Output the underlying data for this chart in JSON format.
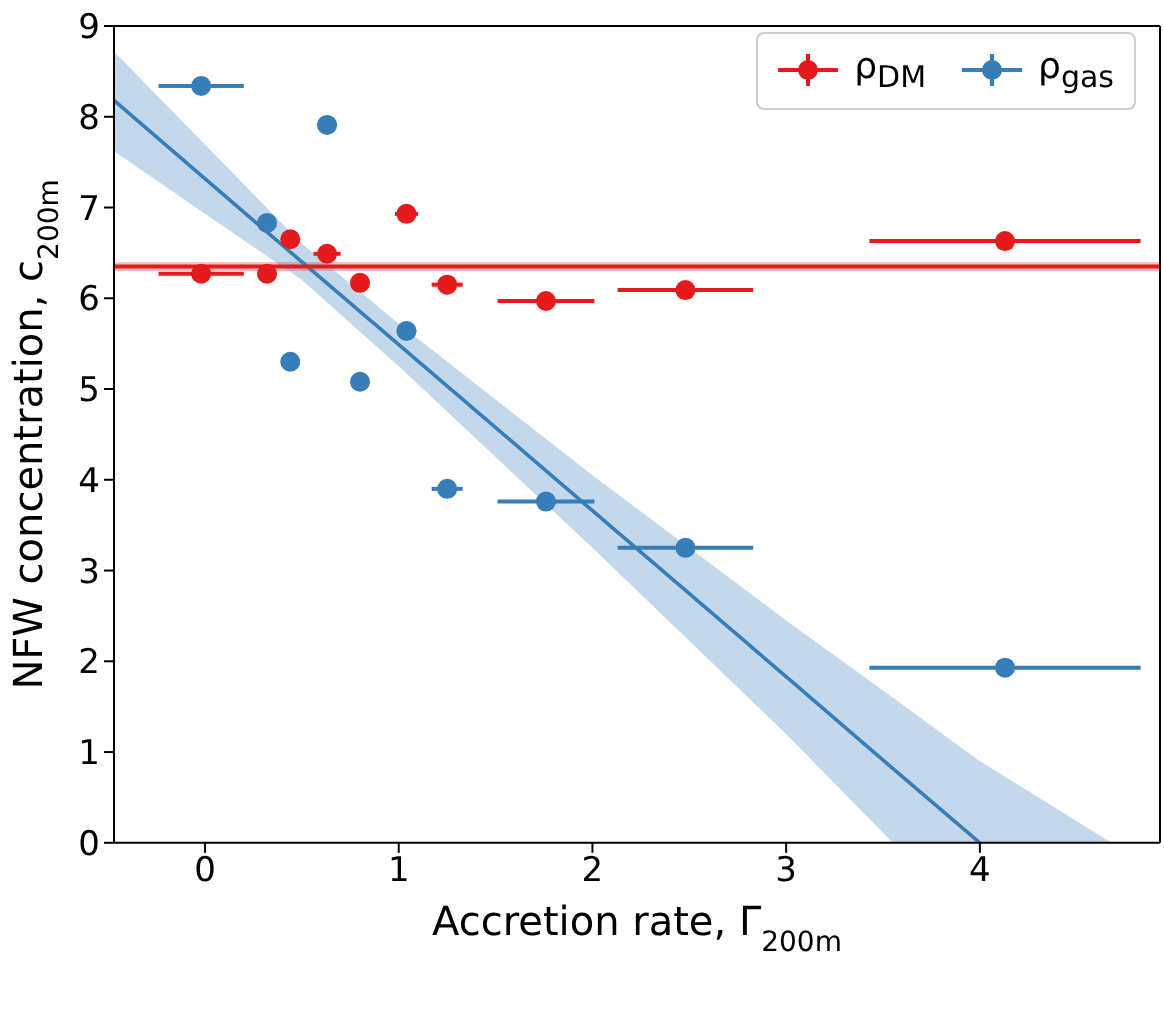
{
  "chart_data": {
    "type": "scatter",
    "xlabel": "Accretion rate, Γ$_{200m}$",
    "ylabel": "NFW concentration, c$_{200m}$",
    "xlim": [
      -0.47,
      4.93
    ],
    "xticks": [
      0,
      1,
      2,
      3,
      4
    ],
    "ylim": [
      0,
      9
    ],
    "yticks": [
      0,
      1,
      2,
      3,
      4,
      5,
      6,
      7,
      8,
      9
    ],
    "legend": "top right",
    "marker": "circle",
    "series": [
      {
        "name": "ρ$_{DM}$",
        "color": "#e41a1c",
        "x": [
          -0.02,
          0.32,
          0.44,
          0.63,
          0.8,
          1.04,
          1.25,
          1.76,
          2.48,
          4.13
        ],
        "values": [
          6.27,
          6.27,
          6.65,
          6.49,
          6.17,
          6.93,
          6.15,
          5.97,
          6.09,
          6.63
        ],
        "xerrors": [
          0.22,
          null,
          null,
          0.07,
          null,
          0.06,
          0.08,
          0.25,
          0.35,
          0.7
        ]
      },
      {
        "name": "ρ$_{gas}$",
        "color": "#377eb8",
        "x": [
          -0.02,
          0.63,
          0.32,
          0.44,
          0.8,
          1.04,
          1.25,
          1.76,
          2.48,
          4.13
        ],
        "values": [
          8.34,
          7.91,
          6.83,
          5.3,
          5.08,
          5.64,
          3.9,
          3.76,
          3.25,
          1.93
        ],
        "errors": [
          0.08,
          0.08,
          null,
          null,
          null,
          null,
          null,
          null,
          null,
          null
        ],
        "xerrors": [
          0.22,
          0.05,
          null,
          null,
          null,
          0.05,
          0.08,
          0.25,
          0.35,
          0.7
        ]
      },
      {
        "type": "line",
        "marker": "none",
        "color": "#377eb8",
        "x": [
          -0.47,
          0.5,
          1,
          2,
          3,
          3.55,
          4,
          4.68
        ],
        "values": [
          8.18,
          6.4,
          5.49,
          3.66,
          1.83,
          0.82,
          0,
          null
        ],
        "lower": [
          7.62,
          6.2,
          5.25,
          3.25,
          1.2,
          0,
          0,
          0
        ],
        "upper": [
          8.72,
          6.6,
          5.72,
          4.05,
          2.45,
          1.6,
          0.9,
          0
        ]
      }
    ],
    "ref_lines": [
      {
        "axis": "y",
        "value": 6.35,
        "color": "#e41a1c"
      }
    ],
    "bands": [
      {
        "axis": "y",
        "from": 6.3,
        "to": 6.4,
        "color": "#f4a6a6"
      }
    ]
  }
}
